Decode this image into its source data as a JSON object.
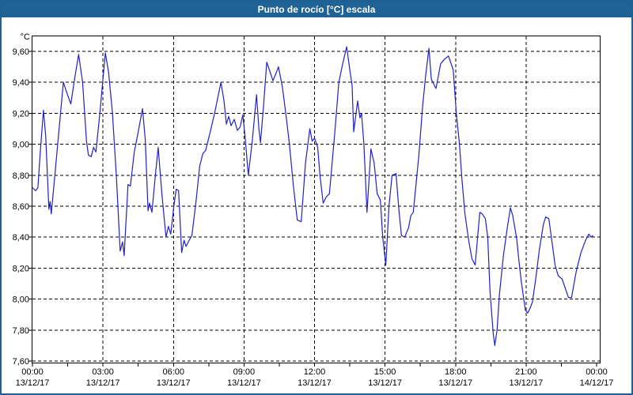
{
  "window": {
    "title": "Punto de rocío [°C] escala"
  },
  "colors": {
    "titlebar_bg": "#1F6396",
    "titlebar_text": "#FFFFFF",
    "frame_border": "#1D6094",
    "plot_bg": "#FFFFFF",
    "grid": "#000000",
    "axis": "#000000",
    "label_text": "#000000",
    "series_line": "#2121C8"
  },
  "chart_data": {
    "type": "line",
    "title": "Punto de rocío [°C] escala",
    "ylabel": "°C",
    "xlabel": "",
    "ylim": [
      7.6,
      9.6
    ],
    "xlim_minutes": [
      0,
      1440
    ],
    "grid": "dashed",
    "legend": "none",
    "y_ticks": [
      {
        "value": 9.6,
        "label": "9,60"
      },
      {
        "value": 9.4,
        "label": "9,40"
      },
      {
        "value": 9.2,
        "label": "9,20"
      },
      {
        "value": 9.0,
        "label": "9,00"
      },
      {
        "value": 8.8,
        "label": "8,80"
      },
      {
        "value": 8.6,
        "label": "8,60"
      },
      {
        "value": 8.4,
        "label": "8,40"
      },
      {
        "value": 8.2,
        "label": "8,20"
      },
      {
        "value": 8.0,
        "label": "8,00"
      },
      {
        "value": 7.8,
        "label": "7,80"
      },
      {
        "value": 7.6,
        "label": "7,60"
      }
    ],
    "x_ticks": [
      {
        "minutes": 0,
        "time": "00:00",
        "date": "13/12/17"
      },
      {
        "minutes": 180,
        "time": "03:00",
        "date": "13/12/17"
      },
      {
        "minutes": 360,
        "time": "06:00",
        "date": "13/12/17"
      },
      {
        "minutes": 540,
        "time": "09:00",
        "date": "13/12/17"
      },
      {
        "minutes": 720,
        "time": "12:00",
        "date": "13/12/17"
      },
      {
        "minutes": 900,
        "time": "15:00",
        "date": "13/12/17"
      },
      {
        "minutes": 1080,
        "time": "18:00",
        "date": "13/12/17"
      },
      {
        "minutes": 1260,
        "time": "21:00",
        "date": "13/12/17"
      },
      {
        "minutes": 1440,
        "time": "00:00",
        "date": "14/12/17"
      }
    ],
    "x_minor_ticks_minutes": [
      90,
      270,
      450,
      630,
      810,
      990,
      1170,
      1350
    ],
    "series": [
      {
        "name": "Punto de rocío [°C]",
        "color": "#2121C8",
        "points_minutes_value": [
          [
            0,
            8.72
          ],
          [
            8,
            8.7
          ],
          [
            14,
            8.72
          ],
          [
            20,
            8.95
          ],
          [
            28,
            9.22
          ],
          [
            34,
            9.05
          ],
          [
            42,
            8.58
          ],
          [
            45,
            8.63
          ],
          [
            48,
            8.55
          ],
          [
            58,
            8.82
          ],
          [
            68,
            9.1
          ],
          [
            79,
            9.4
          ],
          [
            88,
            9.33
          ],
          [
            98,
            9.26
          ],
          [
            108,
            9.43
          ],
          [
            118,
            9.58
          ],
          [
            128,
            9.4
          ],
          [
            138,
            9.02
          ],
          [
            143,
            8.93
          ],
          [
            150,
            8.92
          ],
          [
            156,
            8.98
          ],
          [
            162,
            8.95
          ],
          [
            172,
            9.2
          ],
          [
            186,
            9.59
          ],
          [
            194,
            9.47
          ],
          [
            204,
            9.21
          ],
          [
            214,
            8.8
          ],
          [
            224,
            8.31
          ],
          [
            230,
            8.37
          ],
          [
            234,
            8.28
          ],
          [
            244,
            8.74
          ],
          [
            250,
            8.73
          ],
          [
            260,
            8.95
          ],
          [
            270,
            9.08
          ],
          [
            281,
            9.23
          ],
          [
            288,
            9.03
          ],
          [
            295,
            8.57
          ],
          [
            299,
            8.62
          ],
          [
            305,
            8.56
          ],
          [
            313,
            8.78
          ],
          [
            321,
            8.98
          ],
          [
            331,
            8.66
          ],
          [
            341,
            8.4
          ],
          [
            347,
            8.47
          ],
          [
            353,
            8.42
          ],
          [
            361,
            8.6
          ],
          [
            367,
            8.71
          ],
          [
            373,
            8.7
          ],
          [
            381,
            8.3
          ],
          [
            387,
            8.38
          ],
          [
            392,
            8.34
          ],
          [
            400,
            8.38
          ],
          [
            407,
            8.41
          ],
          [
            417,
            8.62
          ],
          [
            427,
            8.86
          ],
          [
            435,
            8.94
          ],
          [
            442,
            8.96
          ],
          [
            451,
            9.05
          ],
          [
            465,
            9.2
          ],
          [
            481,
            9.4
          ],
          [
            489,
            9.28
          ],
          [
            495,
            9.13
          ],
          [
            501,
            9.18
          ],
          [
            507,
            9.12
          ],
          [
            515,
            9.16
          ],
          [
            523,
            9.09
          ],
          [
            530,
            9.11
          ],
          [
            537,
            9.19
          ],
          [
            543,
            9.04
          ],
          [
            551,
            8.8
          ],
          [
            561,
            9.02
          ],
          [
            572,
            9.32
          ],
          [
            578,
            9.1
          ],
          [
            582,
            9.01
          ],
          [
            590,
            9.25
          ],
          [
            598,
            9.53
          ],
          [
            606,
            9.47
          ],
          [
            614,
            9.41
          ],
          [
            622,
            9.46
          ],
          [
            628,
            9.5
          ],
          [
            638,
            9.37
          ],
          [
            648,
            9.17
          ],
          [
            656,
            9.0
          ],
          [
            666,
            8.73
          ],
          [
            676,
            8.51
          ],
          [
            686,
            8.5
          ],
          [
            697,
            8.88
          ],
          [
            708,
            9.1
          ],
          [
            714,
            9.02
          ],
          [
            720,
            9.04
          ],
          [
            728,
            8.98
          ],
          [
            734,
            8.8
          ],
          [
            742,
            8.62
          ],
          [
            750,
            8.66
          ],
          [
            758,
            8.68
          ],
          [
            772,
            9.08
          ],
          [
            782,
            9.4
          ],
          [
            792,
            9.52
          ],
          [
            802,
            9.63
          ],
          [
            810,
            9.48
          ],
          [
            816,
            9.38
          ],
          [
            820,
            9.08
          ],
          [
            830,
            9.28
          ],
          [
            836,
            9.17
          ],
          [
            840,
            9.2
          ],
          [
            846,
            9.0
          ],
          [
            854,
            8.56
          ],
          [
            864,
            8.97
          ],
          [
            872,
            8.88
          ],
          [
            880,
            8.68
          ],
          [
            888,
            8.64
          ],
          [
            894,
            8.4
          ],
          [
            902,
            8.22
          ],
          [
            910,
            8.6
          ],
          [
            918,
            8.8
          ],
          [
            928,
            8.81
          ],
          [
            936,
            8.56
          ],
          [
            942,
            8.41
          ],
          [
            950,
            8.4
          ],
          [
            960,
            8.46
          ],
          [
            966,
            8.54
          ],
          [
            972,
            8.56
          ],
          [
            986,
            8.92
          ],
          [
            996,
            9.25
          ],
          [
            1004,
            9.45
          ],
          [
            1012,
            9.62
          ],
          [
            1018,
            9.42
          ],
          [
            1030,
            9.36
          ],
          [
            1042,
            9.52
          ],
          [
            1052,
            9.55
          ],
          [
            1062,
            9.57
          ],
          [
            1074,
            9.48
          ],
          [
            1082,
            9.2
          ],
          [
            1090,
            9.0
          ],
          [
            1096,
            8.78
          ],
          [
            1104,
            8.55
          ],
          [
            1114,
            8.37
          ],
          [
            1122,
            8.26
          ],
          [
            1130,
            8.22
          ],
          [
            1142,
            8.56
          ],
          [
            1148,
            8.55
          ],
          [
            1156,
            8.52
          ],
          [
            1162,
            8.4
          ],
          [
            1168,
            8.05
          ],
          [
            1176,
            7.78
          ],
          [
            1180,
            7.7
          ],
          [
            1186,
            7.8
          ],
          [
            1192,
            8.03
          ],
          [
            1202,
            8.28
          ],
          [
            1212,
            8.46
          ],
          [
            1220,
            8.59
          ],
          [
            1226,
            8.54
          ],
          [
            1236,
            8.39
          ],
          [
            1242,
            8.24
          ],
          [
            1248,
            8.11
          ],
          [
            1258,
            7.93
          ],
          [
            1264,
            7.91
          ],
          [
            1270,
            7.94
          ],
          [
            1276,
            7.98
          ],
          [
            1284,
            8.12
          ],
          [
            1294,
            8.32
          ],
          [
            1304,
            8.48
          ],
          [
            1310,
            8.53
          ],
          [
            1318,
            8.52
          ],
          [
            1326,
            8.37
          ],
          [
            1334,
            8.22
          ],
          [
            1342,
            8.15
          ],
          [
            1352,
            8.13
          ],
          [
            1360,
            8.07
          ],
          [
            1368,
            8.01
          ],
          [
            1376,
            8.01
          ],
          [
            1388,
            8.18
          ],
          [
            1400,
            8.3
          ],
          [
            1412,
            8.38
          ],
          [
            1420,
            8.42
          ],
          [
            1426,
            8.4
          ],
          [
            1430,
            8.41
          ]
        ]
      }
    ]
  }
}
